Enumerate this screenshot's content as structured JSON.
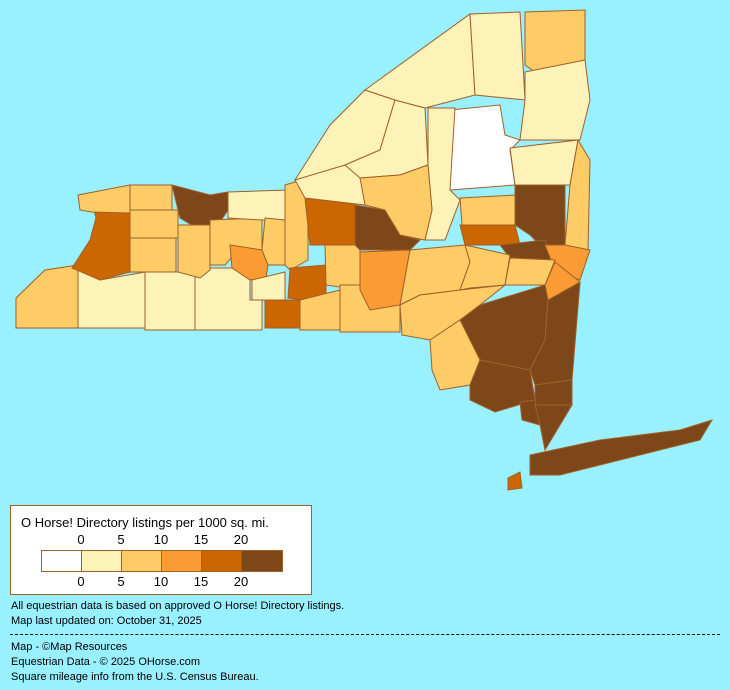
{
  "colors": {
    "background": "#99f0ff",
    "border": "#a0602a"
  },
  "legend": {
    "title": "O Horse! Directory listings per 1000 sq. mi.",
    "top_ticks": [
      "0",
      "5",
      "10",
      "15",
      "20"
    ],
    "bottom_ticks": [
      "0",
      "5",
      "10",
      "15",
      "20"
    ],
    "classes": [
      {
        "range": "0",
        "color": "#ffffff"
      },
      {
        "range": "0-5",
        "color": "#fdf2b8"
      },
      {
        "range": "5-10",
        "color": "#fdcc66"
      },
      {
        "range": "10-15",
        "color": "#fb9b33"
      },
      {
        "range": "15-20",
        "color": "#cc6600"
      },
      {
        "range": "20+",
        "color": "#7d4719"
      }
    ]
  },
  "notes": {
    "line1": "All equestrian data is based on approved O Horse! Directory listings.",
    "line2": "Map last updated on: October 31, 2025",
    "credit1": "Map - ©Map Resources",
    "credit2": "Equestrian Data - © 2025 OHorse.com",
    "credit3": "Square mileage info from the U.S. Census Bureau."
  }
}
